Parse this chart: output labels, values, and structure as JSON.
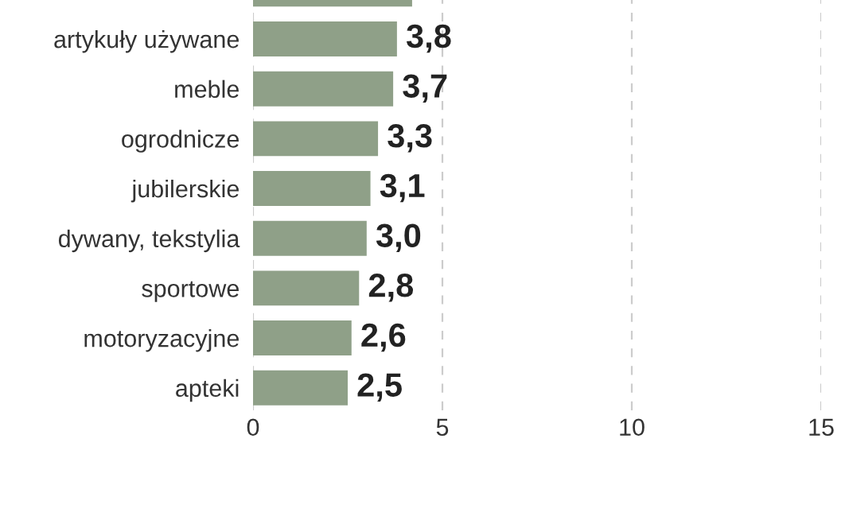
{
  "chart_data": {
    "type": "bar",
    "orientation": "horizontal",
    "categories": [
      null,
      "artykuły używane",
      "meble",
      "ogrodnicze",
      "jubilerskie",
      "dywany, tekstylia",
      "sportowe",
      "motoryzacyjne",
      "apteki"
    ],
    "values": [
      4.2,
      3.8,
      3.7,
      3.3,
      3.1,
      3.0,
      2.8,
      2.6,
      2.5
    ],
    "value_labels": [
      null,
      "3,8",
      "3,7",
      "3,3",
      "3,1",
      "3,0",
      "2,8",
      "2,6",
      "2,5"
    ],
    "color": "#8fa088",
    "xlim": [
      0,
      15
    ],
    "xticks": [
      0,
      5,
      10,
      15
    ],
    "grid": "x"
  }
}
